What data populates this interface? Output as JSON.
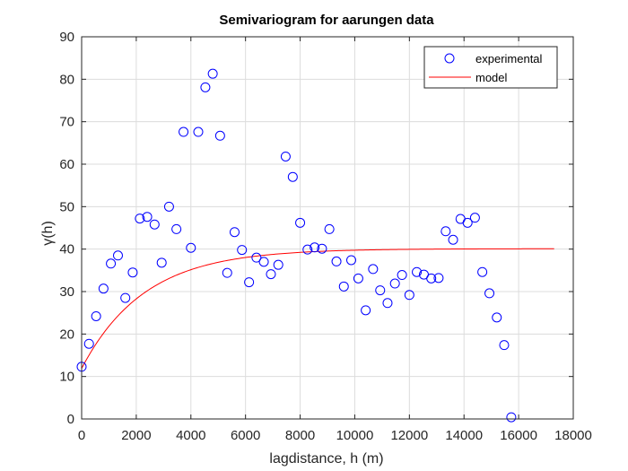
{
  "chart_data": {
    "type": "scatter",
    "title": "Semivariogram for aarungen data",
    "xlabel": "lagdistance, h (m)",
    "ylabel": "γ(h)",
    "xlim": [
      0,
      18000
    ],
    "ylim": [
      0,
      90
    ],
    "xticks": [
      0,
      2000,
      4000,
      6000,
      8000,
      10000,
      12000,
      14000,
      16000,
      18000
    ],
    "yticks": [
      0,
      10,
      20,
      30,
      40,
      50,
      60,
      70,
      80,
      90
    ],
    "grid": true,
    "legend_position": "top-right",
    "series": [
      {
        "name": "experimental",
        "kind": "scatter",
        "color": "#0000ff",
        "marker": "circle-open",
        "x": [
          0,
          270,
          530,
          800,
          1070,
          1330,
          1600,
          1870,
          2130,
          2400,
          2670,
          2930,
          3200,
          3470,
          3730,
          4000,
          4270,
          4530,
          4800,
          5070,
          5330,
          5600,
          5870,
          6130,
          6400,
          6670,
          6930,
          7200,
          7470,
          7730,
          8000,
          8270,
          8530,
          8800,
          9070,
          9330,
          9600,
          9870,
          10130,
          10400,
          10670,
          10930,
          11200,
          11470,
          11730,
          12000,
          12270,
          12530,
          12800,
          13070,
          13330,
          13600,
          13870,
          14130,
          14400,
          14670,
          14930,
          15200,
          15470,
          15730
        ],
        "y": [
          12.3,
          17.7,
          24.2,
          30.7,
          36.6,
          38.5,
          28.5,
          34.5,
          47.2,
          47.6,
          45.8,
          36.8,
          50.0,
          44.7,
          67.6,
          40.3,
          67.6,
          78.1,
          81.3,
          66.7,
          34.4,
          44.0,
          39.8,
          32.2,
          38.0,
          37.0,
          34.1,
          36.3,
          61.8,
          57.0,
          46.2,
          39.9,
          40.4,
          40.1,
          44.7,
          37.1,
          31.2,
          37.4,
          33.1,
          25.6,
          35.3,
          30.3,
          27.3,
          31.9,
          33.9,
          29.2,
          34.6,
          34.0,
          33.1,
          33.2,
          44.2,
          42.2,
          47.1,
          46.2,
          47.4,
          34.6,
          29.6,
          23.9,
          17.4,
          0.4
        ]
      },
      {
        "name": "model",
        "kind": "line",
        "color": "#ff0000",
        "model_type": "exponential",
        "nugget": 11.9,
        "sill": 40.1,
        "range": 2300,
        "x_max": 17300
      }
    ]
  }
}
